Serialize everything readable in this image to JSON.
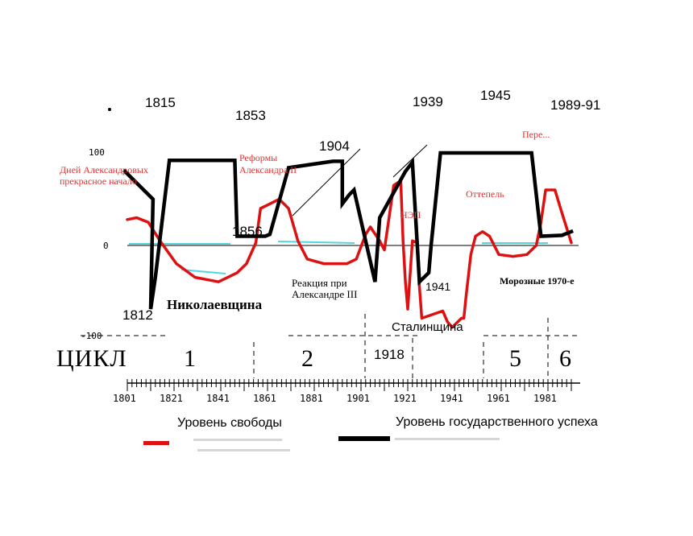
{
  "chart_data": {
    "type": "line",
    "title": "",
    "xlabel": "",
    "ylabel": "",
    "xlim": [
      1800,
      1991
    ],
    "ylim": [
      -100,
      100
    ],
    "grid": false,
    "y_ticks": [
      "100",
      "0",
      "-100"
    ],
    "x_ticks": [
      "1801",
      "1821",
      "1841",
      "1861",
      "1881",
      "1901",
      "1921",
      "1941",
      "1961",
      "1981"
    ],
    "cycle": {
      "label": "ЦИКЛ",
      "numbers": [
        "1",
        "2",
        "5",
        "6"
      ]
    },
    "legend": [
      {
        "label": "Уровень свободы",
        "color": "#dd1111"
      },
      {
        "label": "Уровень государственного успеха",
        "color": "#000000"
      }
    ],
    "series": [
      {
        "name": "Уровень свободы",
        "color": "#dd1111",
        "points": [
          [
            1801,
            28
          ],
          [
            1805,
            30
          ],
          [
            1810,
            25
          ],
          [
            1815,
            5
          ],
          [
            1822,
            -20
          ],
          [
            1830,
            -35
          ],
          [
            1840,
            -40
          ],
          [
            1848,
            -30
          ],
          [
            1852,
            -20
          ],
          [
            1856,
            3
          ],
          [
            1858,
            40
          ],
          [
            1862,
            45
          ],
          [
            1866,
            50
          ],
          [
            1870,
            40
          ],
          [
            1874,
            5
          ],
          [
            1878,
            -15
          ],
          [
            1885,
            -20
          ],
          [
            1895,
            -20
          ],
          [
            1899,
            -15
          ],
          [
            1903,
            12
          ],
          [
            1905,
            20
          ],
          [
            1909,
            5
          ],
          [
            1911,
            -5
          ],
          [
            1913,
            30
          ],
          [
            1915,
            65
          ],
          [
            1918,
            70
          ],
          [
            1919,
            5
          ],
          [
            1920,
            -40
          ],
          [
            1921,
            -70
          ],
          [
            1923,
            5
          ],
          [
            1925,
            3
          ],
          [
            1926,
            -45
          ],
          [
            1927,
            -80
          ],
          [
            1936,
            -72
          ],
          [
            1938,
            -84
          ],
          [
            1940,
            -90
          ],
          [
            1944,
            -80
          ],
          [
            1945,
            -80
          ],
          [
            1946,
            -55
          ],
          [
            1948,
            -10
          ],
          [
            1950,
            10
          ],
          [
            1953,
            15
          ],
          [
            1956,
            10
          ],
          [
            1960,
            -10
          ],
          [
            1966,
            -12
          ],
          [
            1972,
            -10
          ],
          [
            1976,
            0
          ],
          [
            1978,
            25
          ],
          [
            1980,
            60
          ],
          [
            1984,
            60
          ],
          [
            1987,
            35
          ],
          [
            1991,
            3
          ]
        ]
      },
      {
        "name": "Уровень государственного успеха",
        "color": "#000000",
        "points": [
          [
            1800,
            80
          ],
          [
            1812,
            50
          ],
          [
            1811,
            -70
          ],
          [
            1813,
            -35
          ],
          [
            1819,
            92
          ],
          [
            1824,
            92
          ],
          [
            1847,
            92
          ],
          [
            1848,
            10
          ],
          [
            1852,
            10
          ],
          [
            1860,
            10
          ],
          [
            1862,
            12
          ],
          [
            1870,
            84
          ],
          [
            1889,
            91
          ],
          [
            1893,
            91
          ],
          [
            1893,
            45
          ],
          [
            1896,
            55
          ],
          [
            1898,
            60
          ],
          [
            1907,
            -40
          ],
          [
            1909,
            30
          ],
          [
            1920,
            80
          ],
          [
            1923,
            90
          ],
          [
            1926,
            -40
          ],
          [
            1930,
            -30
          ],
          [
            1931,
            0
          ],
          [
            1935,
            100
          ],
          [
            1942,
            100
          ],
          [
            1950,
            100
          ],
          [
            1960,
            100
          ],
          [
            1974,
            100
          ],
          [
            1978,
            10
          ],
          [
            1987,
            11
          ],
          [
            1991,
            15
          ]
        ]
      }
    ],
    "annotations": [
      "1815",
      "1853",
      "1904",
      "1939",
      "1945",
      "1989-91",
      "1856",
      "1812",
      "1941",
      "1918",
      "Дней Александровых",
      "прекрасное начало",
      "Реформы",
      "Александра II",
      "Николаевщина",
      "Реакция при",
      "Александре III",
      "НЭП",
      "Оттепель",
      "Пере...",
      "Морозные 1970-е",
      "Сталинщина"
    ]
  }
}
